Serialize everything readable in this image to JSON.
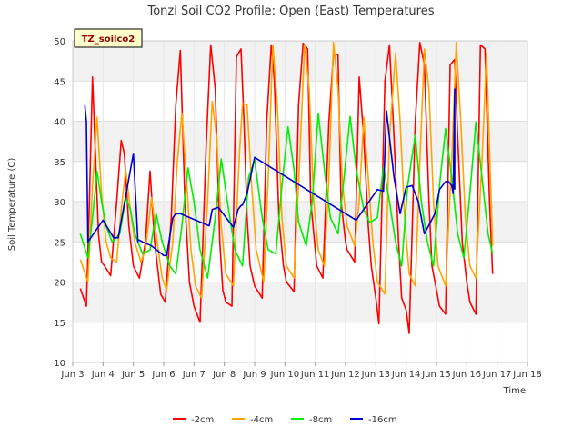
{
  "chart_data": {
    "type": "line",
    "title": "Tonzi Soil CO2 Profile: Open (East) Temperatures",
    "xlabel": "Time",
    "ylabel": "Soil Temperature (C)",
    "annotation": "TZ_soilco2",
    "xlim": [
      3,
      18
    ],
    "ylim": [
      10,
      50
    ],
    "x_ticks": [
      3,
      4,
      5,
      6,
      7,
      8,
      9,
      10,
      11,
      12,
      13,
      14,
      15,
      16,
      17,
      18
    ],
    "x_tick_labels": [
      "Jun 3",
      "Jun 4",
      "Jun 5",
      "Jun 6",
      "Jun 7",
      "Jun 8",
      "Jun 9",
      "Jun 10",
      "Jun 11",
      "Jun 12",
      "Jun 13",
      "Jun 14",
      "Jun 15",
      "Jun 16",
      "Jun 17",
      "Jun 18"
    ],
    "y_ticks": [
      10,
      15,
      20,
      25,
      30,
      35,
      40,
      45,
      50
    ],
    "y_tick_labels": [
      "10",
      "15",
      "20",
      "25",
      "30",
      "35",
      "40",
      "45",
      "50"
    ],
    "grid": true,
    "legend": "bottom",
    "series": [
      {
        "name": "-2cm",
        "color": "#ff0000",
        "x": [
          3.25,
          3.45,
          3.55,
          3.65,
          3.85,
          3.95,
          4.05,
          4.25,
          4.45,
          4.6,
          4.7,
          4.85,
          5.0,
          5.2,
          5.4,
          5.55,
          5.7,
          5.9,
          6.05,
          6.25,
          6.4,
          6.55,
          6.7,
          6.85,
          7.0,
          7.2,
          7.4,
          7.55,
          7.7,
          7.85,
          7.95,
          8.05,
          8.25,
          8.4,
          8.55,
          8.65,
          8.75,
          8.85,
          9.0,
          9.25,
          9.4,
          9.55,
          9.65,
          9.8,
          9.95,
          10.05,
          10.3,
          10.45,
          10.6,
          10.75,
          10.85,
          11.0,
          11.05,
          11.25,
          11.45,
          11.6,
          11.75,
          11.85,
          12.0,
          12.05,
          12.3,
          12.45,
          12.6,
          12.75,
          12.85,
          13.0,
          13.1,
          13.3,
          13.45,
          13.6,
          13.75,
          13.85,
          14.0,
          14.1,
          14.3,
          14.45,
          14.6,
          14.75,
          14.85,
          15.0,
          15.1,
          15.3,
          15.45,
          15.6,
          15.7,
          15.85,
          16.0,
          16.1,
          16.3,
          16.45,
          16.6,
          16.75,
          16.85
        ],
        "y": [
          19.2,
          17.0,
          30.0,
          45.5,
          26.0,
          22.5,
          22.0,
          20.8,
          30.0,
          37.6,
          36.0,
          27.0,
          22.0,
          20.5,
          25.0,
          33.8,
          25.0,
          18.5,
          17.5,
          28.0,
          42.0,
          48.8,
          30.0,
          20.0,
          17.0,
          15.0,
          37.0,
          49.5,
          44.0,
          25.0,
          19.0,
          17.5,
          17.0,
          48.0,
          49.0,
          40.0,
          28.0,
          22.0,
          19.5,
          18.0,
          40.0,
          49.5,
          45.0,
          28.0,
          22.0,
          20.0,
          18.8,
          42.0,
          49.7,
          49.0,
          30.0,
          24.0,
          22.0,
          20.5,
          40.0,
          48.3,
          48.3,
          30.0,
          25.0,
          24.0,
          22.5,
          45.5,
          38.0,
          27.0,
          22.0,
          18.0,
          14.8,
          45.0,
          49.5,
          38.0,
          25.0,
          18.0,
          16.5,
          13.6,
          40.0,
          49.8,
          47.0,
          30.0,
          22.0,
          19.0,
          17.0,
          16.0,
          47.0,
          47.7,
          38.0,
          25.0,
          20.0,
          17.5,
          16.0,
          49.5,
          49.0,
          30.0,
          21.0
        ]
      },
      {
        "name": "-4cm",
        "color": "#ffa500",
        "x": [
          3.25,
          3.5,
          3.65,
          3.8,
          3.95,
          4.1,
          4.25,
          4.45,
          4.6,
          4.75,
          4.9,
          5.05,
          5.25,
          5.4,
          5.6,
          5.75,
          5.95,
          6.1,
          6.3,
          6.45,
          6.6,
          6.75,
          6.9,
          7.05,
          7.25,
          7.45,
          7.6,
          7.75,
          7.9,
          8.05,
          8.3,
          8.5,
          8.6,
          8.75,
          8.9,
          9.05,
          9.3,
          9.45,
          9.6,
          9.75,
          9.9,
          10.05,
          10.3,
          10.45,
          10.65,
          10.8,
          10.95,
          11.1,
          11.3,
          11.45,
          11.6,
          11.75,
          11.9,
          12.05,
          12.3,
          12.45,
          12.6,
          12.75,
          12.9,
          13.05,
          13.3,
          13.45,
          13.65,
          13.8,
          13.95,
          14.1,
          14.3,
          14.45,
          14.6,
          14.75,
          14.9,
          15.05,
          15.3,
          15.5,
          15.65,
          15.8,
          15.95,
          16.1,
          16.3,
          16.5,
          16.65,
          16.85
        ],
        "y": [
          22.8,
          20.0,
          32.0,
          40.5,
          31.0,
          25.0,
          23.0,
          22.5,
          29.0,
          34.0,
          29.0,
          25.0,
          22.5,
          24.0,
          30.5,
          26.0,
          20.5,
          19.0,
          25.0,
          35.0,
          41.0,
          33.0,
          24.0,
          19.5,
          18.0,
          30.0,
          42.5,
          38.0,
          27.0,
          21.0,
          19.5,
          36.0,
          42.2,
          42.0,
          32.0,
          24.0,
          20.0,
          33.0,
          49.5,
          42.0,
          28.0,
          22.0,
          20.5,
          32.0,
          49.5,
          44.0,
          30.0,
          24.0,
          22.0,
          33.0,
          49.8,
          44.0,
          32.0,
          27.0,
          24.5,
          30.0,
          40.5,
          33.0,
          25.0,
          20.0,
          18.5,
          38.0,
          48.5,
          40.0,
          28.0,
          21.0,
          19.5,
          35.0,
          49.0,
          44.0,
          30.0,
          22.0,
          19.5,
          35.0,
          49.8,
          40.0,
          28.0,
          22.0,
          20.5,
          35.0,
          48.5,
          24.5
        ]
      },
      {
        "name": "-8cm",
        "color": "#00ee00",
        "x": [
          3.25,
          3.5,
          3.65,
          3.8,
          3.95,
          4.1,
          4.3,
          4.55,
          4.75,
          4.9,
          5.05,
          5.3,
          5.55,
          5.75,
          5.95,
          6.2,
          6.4,
          6.6,
          6.8,
          7.0,
          7.2,
          7.45,
          7.7,
          7.9,
          8.1,
          8.35,
          8.6,
          8.8,
          9.0,
          9.25,
          9.45,
          9.7,
          9.9,
          10.1,
          10.3,
          10.45,
          10.7,
          10.9,
          11.1,
          11.3,
          11.5,
          11.75,
          11.95,
          12.15,
          12.35,
          12.6,
          12.8,
          13.05,
          13.25,
          13.45,
          13.65,
          13.85,
          14.05,
          14.3,
          14.5,
          14.7,
          14.9,
          15.1,
          15.3,
          15.5,
          15.7,
          15.9,
          16.1,
          16.3,
          16.5,
          16.7,
          16.85
        ],
        "y": [
          26.0,
          23.0,
          28.0,
          33.8,
          30.0,
          27.0,
          25.0,
          26.0,
          30.5,
          29.0,
          26.0,
          23.5,
          24.0,
          28.5,
          25.0,
          22.0,
          21.0,
          27.0,
          34.2,
          30.0,
          24.0,
          20.5,
          28.0,
          35.3,
          30.0,
          24.0,
          22.0,
          33.0,
          35.2,
          28.0,
          24.0,
          23.5,
          32.0,
          39.3,
          34.0,
          27.5,
          24.5,
          30.0,
          41.0,
          34.0,
          28.0,
          26.0,
          33.0,
          40.6,
          34.0,
          29.0,
          27.4,
          28.0,
          34.3,
          30.0,
          25.0,
          22.0,
          32.0,
          38.3,
          30.0,
          25.0,
          22.0,
          32.0,
          39.1,
          33.0,
          26.0,
          23.0,
          31.0,
          39.9,
          33.0,
          26.0,
          23.5
        ]
      },
      {
        "name": "-16cm",
        "color": "#0000cc",
        "x": [
          3.4,
          3.45,
          3.5,
          4.0,
          4.35,
          4.5,
          5.0,
          5.15,
          5.15,
          5.3,
          5.6,
          6.0,
          6.1,
          6.3,
          6.4,
          6.55,
          7.5,
          7.6,
          7.8,
          8.3,
          8.45,
          8.55,
          8.6,
          8.75,
          9.0,
          12.35,
          13.05,
          13.25,
          13.35,
          13.6,
          13.8,
          14.0,
          14.2,
          14.4,
          14.6,
          14.95,
          15.1,
          15.3,
          15.4,
          15.5,
          15.55,
          15.6,
          15.6
        ],
        "y": [
          42.0,
          40.0,
          25.0,
          27.7,
          25.5,
          25.5,
          36.0,
          25.0,
          25.3,
          25.0,
          24.5,
          23.3,
          23.3,
          28.0,
          28.5,
          28.5,
          27.0,
          29.0,
          29.3,
          26.8,
          29.0,
          29.5,
          29.6,
          31.0,
          35.5,
          27.7,
          31.5,
          31.3,
          41.3,
          33.0,
          28.5,
          31.8,
          32.0,
          30.0,
          26.0,
          28.5,
          31.5,
          32.5,
          32.5,
          32.0,
          31.0,
          44.0,
          31.5
        ]
      }
    ]
  }
}
